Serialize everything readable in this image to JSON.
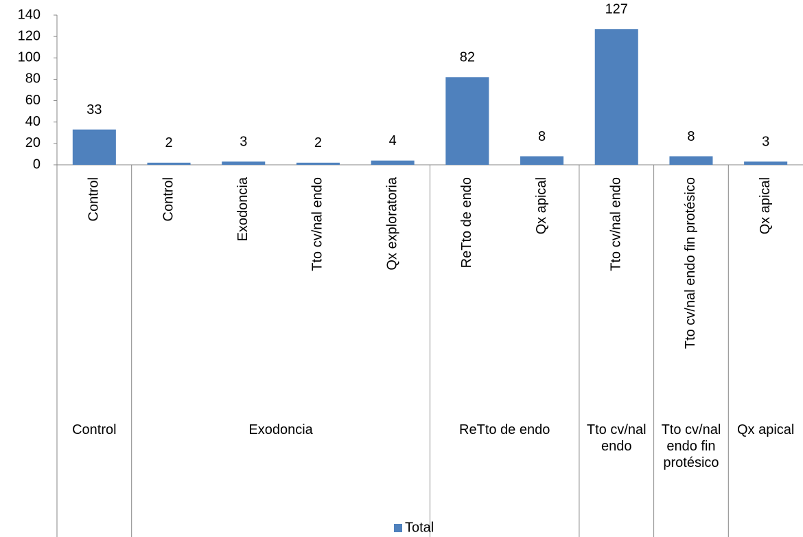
{
  "chart_data": {
    "type": "bar",
    "groups": [
      {
        "name": "Control",
        "categories": [
          "Control"
        ],
        "values": [
          33
        ]
      },
      {
        "name": "Exodoncia",
        "categories": [
          "Control",
          "Exodoncia",
          "Tto cv/nal endo",
          "Qx exploratoria"
        ],
        "values": [
          2,
          3,
          2,
          4
        ]
      },
      {
        "name": "ReTto de endo",
        "categories": [
          "ReTto de endo",
          "Qx apical"
        ],
        "values": [
          82,
          8
        ]
      },
      {
        "name": "Tto cv/nal endo",
        "categories": [
          "Tto cv/nal endo"
        ],
        "values": [
          127
        ]
      },
      {
        "name": "Tto cv/nal endo fin protésico",
        "categories": [
          "Tto cv/nal endo fin protésico"
        ],
        "values": [
          8
        ]
      },
      {
        "name": "Qx apical",
        "categories": [
          "Qx apical"
        ],
        "values": [
          3
        ]
      }
    ],
    "series_name": "Total",
    "color": "#4f81bd",
    "ylim": [
      0,
      140
    ],
    "yticks": [
      0,
      20,
      40,
      60,
      80,
      100,
      120,
      140
    ],
    "legend": "bottom"
  }
}
